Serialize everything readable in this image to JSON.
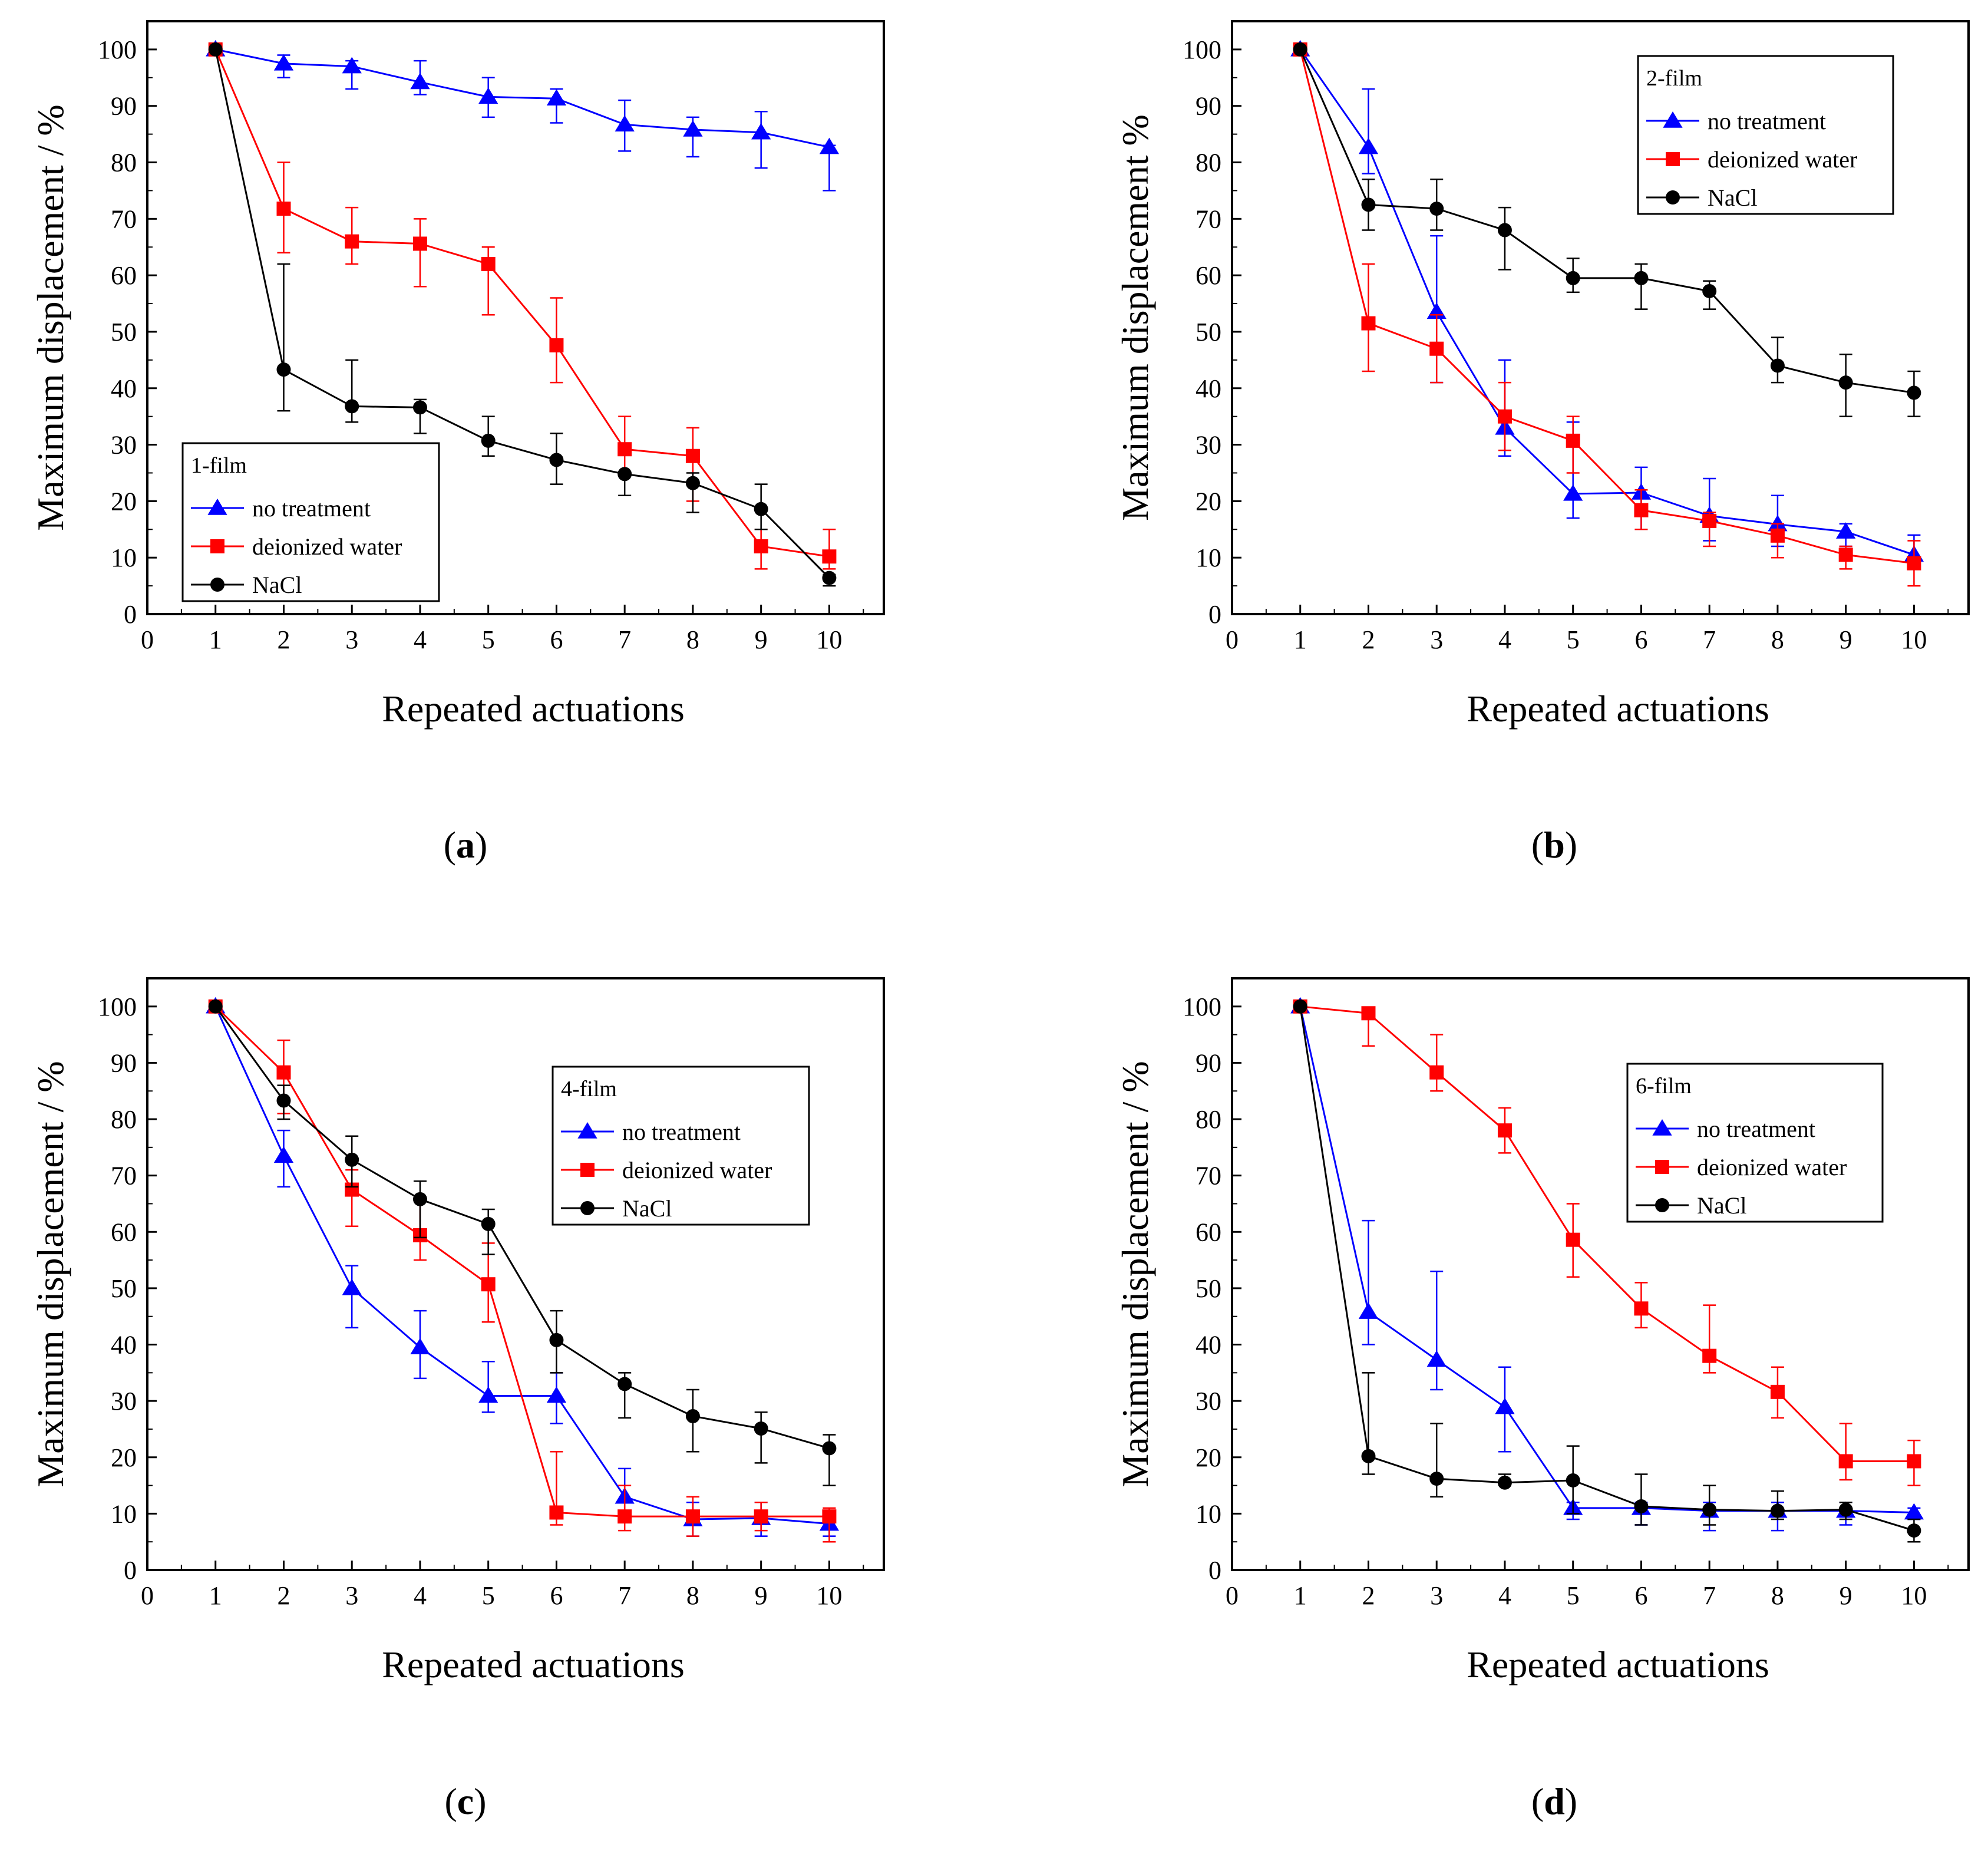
{
  "colors": {
    "no_treatment": "#0000ff",
    "deionized_water": "#ff0000",
    "NaCl": "#000000"
  },
  "chart_data": [
    {
      "type": "line",
      "caption": "a",
      "legend_title": "1-film",
      "legend_position": "bottom-left",
      "xlabel": "Repeated actuations",
      "ylabel": "Maximum displacement / %",
      "xlim": [
        0,
        10.8
      ],
      "ylim": [
        0,
        105
      ],
      "xticks": [
        0,
        1,
        2,
        3,
        4,
        5,
        6,
        7,
        8,
        9,
        10
      ],
      "yticks": [
        0,
        10,
        20,
        30,
        40,
        50,
        60,
        70,
        80,
        90,
        100
      ],
      "x": [
        1,
        2,
        3,
        4,
        5,
        6,
        7,
        8,
        9,
        10
      ],
      "series": [
        {
          "name": "no treatment",
          "marker": "triangle",
          "color": "#0000ff",
          "values": [
            100,
            97.5,
            97,
            94.2,
            91.6,
            91.3,
            86.7,
            85.8,
            85.3,
            82.7
          ],
          "err_low": [
            0,
            2.5,
            4,
            2.2,
            3.6,
            4.3,
            4.7,
            4.8,
            6.3,
            7.7
          ],
          "err_high": [
            0,
            1.5,
            1,
            3.8,
            3.4,
            1.7,
            4.3,
            2.2,
            3.7,
            0.3
          ]
        },
        {
          "name": "deionized water",
          "marker": "square",
          "color": "#ff0000",
          "values": [
            100,
            71.8,
            66,
            65.6,
            62,
            47.6,
            29.2,
            28,
            12,
            10.2
          ],
          "err_low": [
            0,
            7.8,
            4,
            7.6,
            9,
            6.6,
            4.2,
            8,
            4,
            2.2
          ],
          "err_high": [
            0,
            8.2,
            6,
            4.4,
            3,
            8.4,
            5.8,
            5,
            3,
            4.8
          ]
        },
        {
          "name": "NaCl",
          "marker": "circle",
          "color": "#000000",
          "values": [
            100,
            43.3,
            36.8,
            36.6,
            30.7,
            27.3,
            24.8,
            23.2,
            18.6,
            6.4
          ],
          "err_low": [
            0,
            7.3,
            2.8,
            4.6,
            2.7,
            4.3,
            3.8,
            5.2,
            3.6,
            1.4
          ],
          "err_high": [
            0,
            18.7,
            8.2,
            1.4,
            4.3,
            4.7,
            0.2,
            1.8,
            4.4,
            0.6
          ]
        }
      ]
    },
    {
      "type": "line",
      "caption": "b",
      "legend_title": "2-film",
      "legend_position": "top-right",
      "xlabel": "Repeated actuations",
      "ylabel": "Maximum displacement  %",
      "xlim": [
        0,
        10.8
      ],
      "ylim": [
        0,
        105
      ],
      "xticks": [
        0,
        1,
        2,
        3,
        4,
        5,
        6,
        7,
        8,
        9,
        10
      ],
      "yticks": [
        0,
        10,
        20,
        30,
        40,
        50,
        60,
        70,
        80,
        90,
        100
      ],
      "x": [
        1,
        2,
        3,
        4,
        5,
        6,
        7,
        8,
        9,
        10
      ],
      "series": [
        {
          "name": "no treatment",
          "marker": "triangle",
          "color": "#0000ff",
          "values": [
            100,
            82.7,
            53.5,
            33,
            21.3,
            21.5,
            17.4,
            15.9,
            14.6,
            10.5
          ],
          "err_low": [
            0,
            4.7,
            12.5,
            5,
            4.3,
            6.5,
            4.4,
            3.9,
            2.6,
            1.5
          ],
          "err_high": [
            0,
            10.3,
            13.5,
            12,
            12.7,
            4.5,
            6.6,
            5.1,
            1.4,
            3.5
          ]
        },
        {
          "name": "deionized water",
          "marker": "square",
          "color": "#ff0000",
          "values": [
            100,
            51.5,
            47,
            35,
            30.7,
            18.4,
            16.5,
            13.9,
            10.5,
            9
          ],
          "err_low": [
            0,
            8.5,
            6,
            6,
            5.7,
            3.4,
            4.5,
            3.9,
            2.5,
            4
          ],
          "err_high": [
            0,
            10.5,
            6,
            6,
            4.3,
            3.6,
            1.5,
            2.1,
            1.5,
            4
          ]
        },
        {
          "name": "NaCl",
          "marker": "circle",
          "color": "#000000",
          "values": [
            100,
            72.5,
            71.8,
            68,
            59.5,
            59.5,
            57.2,
            44,
            41,
            39.2
          ],
          "err_low": [
            0,
            4.5,
            3.8,
            7,
            2.5,
            5.5,
            3.2,
            3,
            6,
            4.2
          ],
          "err_high": [
            0,
            4.5,
            5.2,
            4,
            3.5,
            2.5,
            1.8,
            5,
            5,
            3.8
          ]
        }
      ]
    },
    {
      "type": "line",
      "caption": "c",
      "legend_title": "4-film",
      "legend_position": "top-right",
      "xlabel": "Repeated actuations",
      "ylabel": "Maximum displacement / %",
      "xlim": [
        0,
        10.8
      ],
      "ylim": [
        0,
        105
      ],
      "xticks": [
        0,
        1,
        2,
        3,
        4,
        5,
        6,
        7,
        8,
        9,
        10
      ],
      "yticks": [
        0,
        10,
        20,
        30,
        40,
        50,
        60,
        70,
        80,
        90,
        100
      ],
      "x": [
        1,
        2,
        3,
        4,
        5,
        6,
        7,
        8,
        9,
        10
      ],
      "series": [
        {
          "name": "no treatment",
          "marker": "triangle",
          "color": "#0000ff",
          "values": [
            100,
            73.5,
            50,
            39.5,
            30.9,
            30.9,
            13,
            9,
            9.2,
            8.2
          ],
          "err_low": [
            0,
            5.5,
            7,
            5.5,
            2.9,
            4.9,
            4,
            3,
            3.2,
            2.2
          ],
          "err_high": [
            0,
            4.5,
            4,
            6.5,
            6.1,
            4.1,
            5,
            3,
            2.8,
            1.8
          ]
        },
        {
          "name": "deionized water",
          "marker": "square",
          "color": "#ff0000",
          "values": [
            100,
            88.3,
            67.5,
            59.4,
            50.7,
            10.2,
            9.5,
            9.5,
            9.5,
            9.5
          ],
          "err_low": [
            0,
            7.3,
            6.5,
            4.4,
            6.7,
            2.2,
            2.5,
            3.5,
            2.5,
            4.5
          ],
          "err_high": [
            0,
            5.7,
            3.5,
            6.6,
            7.3,
            10.8,
            5.5,
            3.5,
            2.5,
            1.5
          ]
        },
        {
          "name": "NaCl",
          "marker": "circle",
          "color": "#000000",
          "values": [
            100,
            83.3,
            72.8,
            65.8,
            61.4,
            40.8,
            33,
            27.3,
            25.1,
            21.6
          ],
          "err_low": [
            0,
            3.3,
            4.8,
            6.8,
            5.4,
            5.8,
            6,
            6.3,
            6.1,
            6.6
          ],
          "err_high": [
            0,
            2.7,
            4.2,
            3.2,
            2.6,
            5.2,
            2,
            4.7,
            2.9,
            2.4
          ]
        }
      ]
    },
    {
      "type": "line",
      "caption": "d",
      "legend_title": "6-film",
      "legend_position": "top-right",
      "xlabel": "Repeated actuations",
      "ylabel": "Maximum displacement / %",
      "xlim": [
        0,
        10.8
      ],
      "ylim": [
        0,
        105
      ],
      "xticks": [
        0,
        1,
        2,
        3,
        4,
        5,
        6,
        7,
        8,
        9,
        10
      ],
      "yticks": [
        0,
        10,
        20,
        30,
        40,
        50,
        60,
        70,
        80,
        90,
        100
      ],
      "x": [
        1,
        2,
        3,
        4,
        5,
        6,
        7,
        8,
        9,
        10
      ],
      "series": [
        {
          "name": "no treatment",
          "marker": "triangle",
          "color": "#0000ff",
          "values": [
            100,
            45.8,
            37.3,
            28.9,
            11,
            11,
            10.5,
            10.5,
            10.5,
            10.2
          ],
          "err_low": [
            0,
            5.8,
            5.3,
            7.9,
            2,
            3,
            3.5,
            3.5,
            2.5,
            1.2
          ],
          "err_high": [
            0,
            16.2,
            15.7,
            7.1,
            1,
            1,
            1.5,
            1.5,
            1.5,
            0.8
          ]
        },
        {
          "name": "deionized water",
          "marker": "square",
          "color": "#ff0000",
          "values": [
            100,
            98.8,
            88.3,
            78,
            58.6,
            46.4,
            38,
            31.6,
            19.3,
            19.3
          ],
          "err_low": [
            0,
            5.8,
            3.3,
            4,
            6.6,
            3.4,
            3,
            4.6,
            3.3,
            4.3
          ],
          "err_high": [
            0,
            0.2,
            6.7,
            4,
            6.4,
            4.6,
            9,
            4.4,
            6.7,
            3.7
          ]
        },
        {
          "name": "NaCl",
          "marker": "circle",
          "color": "#000000",
          "values": [
            100,
            20.2,
            16.2,
            15.5,
            15.9,
            11.3,
            10.7,
            10.5,
            10.7,
            7
          ],
          "err_low": [
            0,
            3.2,
            3.2,
            0.5,
            5.9,
            3.3,
            2.7,
            1.5,
            1.7,
            2
          ],
          "err_high": [
            0,
            14.8,
            9.8,
            1.5,
            6.1,
            5.7,
            4.3,
            3.5,
            1.3,
            2
          ]
        }
      ]
    }
  ]
}
